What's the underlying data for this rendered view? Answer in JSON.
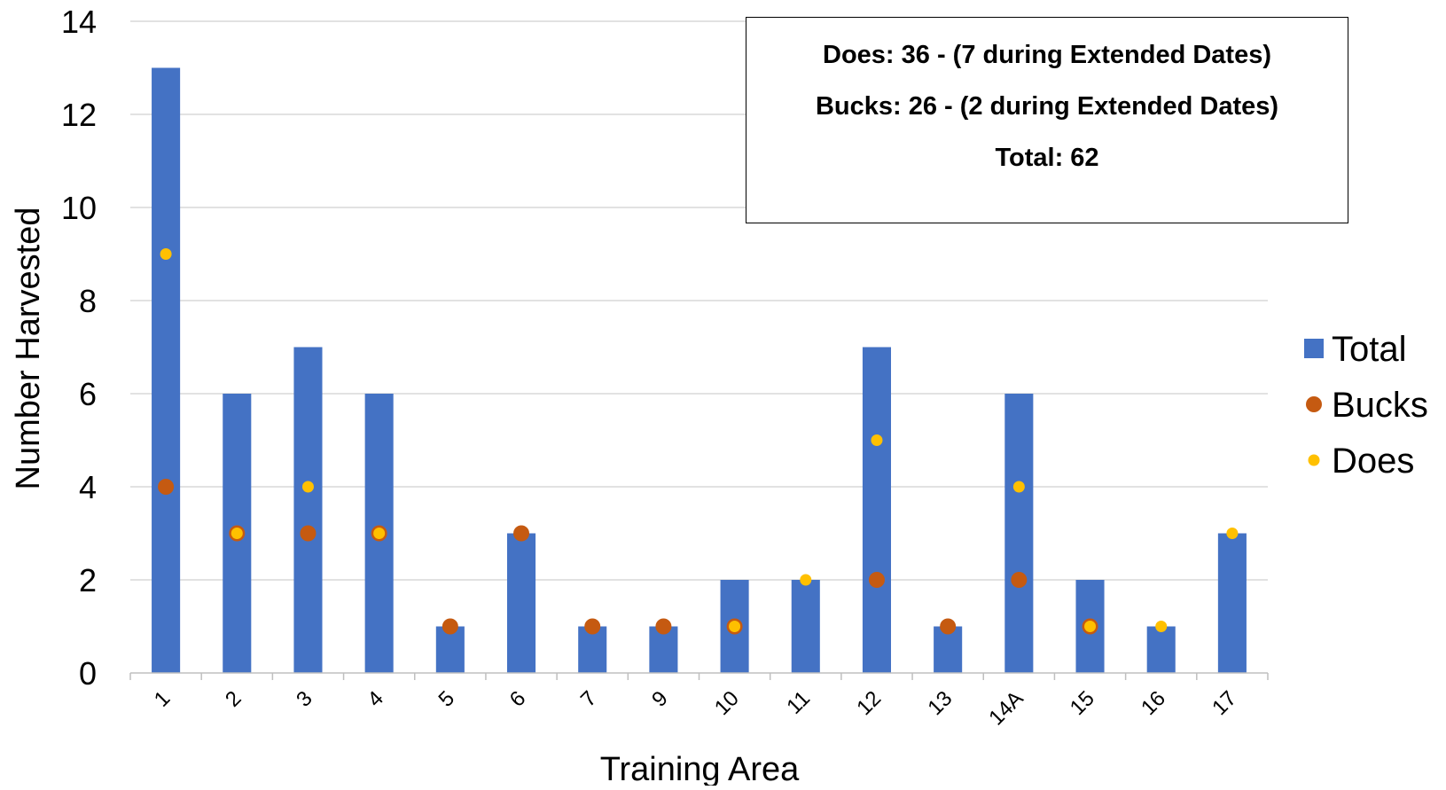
{
  "chart_data": {
    "type": "bar",
    "xlabel": "Training Area",
    "ylabel": "Number Harvested",
    "ylim": [
      0,
      14
    ],
    "yticks": [
      0,
      2,
      4,
      6,
      8,
      10,
      12,
      14
    ],
    "grid": true,
    "legend_position": "right",
    "categories": [
      "1",
      "2",
      "3",
      "4",
      "5",
      "6",
      "7",
      "9",
      "10",
      "11",
      "12",
      "13",
      "14A",
      "15",
      "16",
      "17"
    ],
    "series": [
      {
        "name": "Total",
        "type": "bar",
        "color": "#4472C4",
        "values": [
          13,
          6,
          7,
          6,
          1,
          3,
          1,
          1,
          2,
          2,
          7,
          1,
          6,
          2,
          1,
          3
        ]
      },
      {
        "name": "Bucks",
        "type": "scatter",
        "color": "#C55A11",
        "values": [
          4,
          3,
          3,
          3,
          1,
          3,
          1,
          1,
          1,
          null,
          2,
          1,
          2,
          1,
          null,
          null
        ]
      },
      {
        "name": "Does",
        "type": "scatter",
        "color": "#FFC000",
        "values": [
          9,
          3,
          4,
          3,
          null,
          null,
          null,
          null,
          1,
          2,
          5,
          null,
          4,
          1,
          1,
          3
        ]
      }
    ],
    "annotations": [
      "Does: 36 - (7 during Extended Dates)",
      "Bucks: 26 - (2 during Extended Dates)",
      "Total: 62"
    ]
  }
}
